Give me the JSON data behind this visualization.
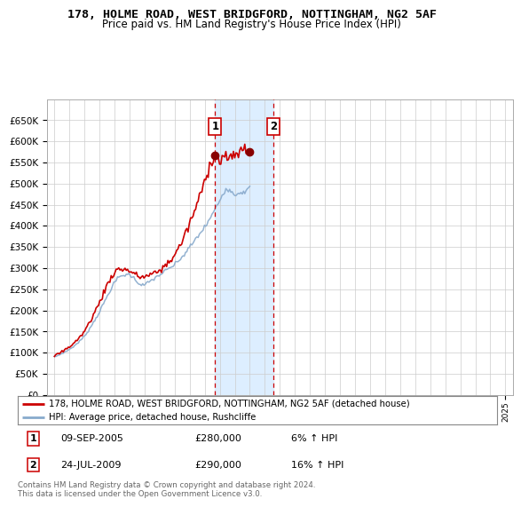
{
  "title": "178, HOLME ROAD, WEST BRIDGFORD, NOTTINGHAM, NG2 5AF",
  "subtitle": "Price paid vs. HM Land Registry's House Price Index (HPI)",
  "ylim": [
    0,
    700000
  ],
  "yticks": [
    0,
    50000,
    100000,
    150000,
    200000,
    250000,
    300000,
    350000,
    400000,
    450000,
    500000,
    550000,
    600000,
    650000
  ],
  "sale1_year": 2005.69,
  "sale1_price": 280000,
  "sale1_date": "09-SEP-2005",
  "sale1_hpi": "6% ↑ HPI",
  "sale2_year": 2009.56,
  "sale2_price": 290000,
  "sale2_date": "24-JUL-2009",
  "sale2_hpi": "16% ↑ HPI",
  "line_color_property": "#cc0000",
  "line_color_hpi": "#88aacc",
  "shaded_region_color": "#ddeeff",
  "legend_property": "178, HOLME ROAD, WEST BRIDGFORD, NOTTINGHAM, NG2 5AF (detached house)",
  "legend_hpi": "HPI: Average price, detached house, Rushcliffe",
  "footer": "Contains HM Land Registry data © Crown copyright and database right 2024.\nThis data is licensed under the Open Government Licence v3.0.",
  "background_color": "#ffffff",
  "grid_color": "#cccccc",
  "hpi_data": [
    90000,
    91000,
    92000,
    93500,
    95000,
    96500,
    98000,
    99500,
    101000,
    102500,
    104000,
    106000,
    108000,
    110000,
    112000,
    114000,
    116500,
    119000,
    121500,
    124000,
    127000,
    130000,
    133000,
    136000,
    140000,
    144000,
    148000,
    152000,
    157000,
    162000,
    167000,
    172000,
    177000,
    182000,
    187000,
    192000,
    198000,
    204000,
    210000,
    216000,
    222000,
    228000,
    234000,
    240000,
    246000,
    252000,
    257000,
    262000,
    267000,
    271000,
    275000,
    278000,
    280000,
    281000,
    282000,
    283000,
    284000,
    284500,
    285000,
    285000,
    284000,
    282000,
    279000,
    276000,
    273000,
    270000,
    267000,
    264000,
    262000,
    261000,
    260000,
    260000,
    261000,
    263000,
    265000,
    267000,
    269000,
    271000,
    273000,
    275000,
    277000,
    279000,
    281000,
    283000,
    285000,
    287000,
    289000,
    291000,
    293000,
    295000,
    297000,
    299000,
    301000,
    303000,
    305000,
    307000,
    310000,
    313000,
    316000,
    319000,
    322000,
    325000,
    328000,
    332000,
    336000,
    340000,
    344000,
    348000,
    352000,
    356000,
    360000,
    364000,
    368000,
    372000,
    376000,
    380000,
    384000,
    388000,
    392000,
    396000,
    400000,
    405000,
    410000,
    415000,
    420000,
    425000,
    430000,
    436000,
    442000,
    448000,
    454000,
    460000,
    466000,
    472000,
    478000,
    484000,
    488000,
    490000,
    488000,
    485000,
    482000,
    479000,
    477000,
    476000,
    476000,
    477000,
    478000,
    479000,
    480000,
    481000,
    482000,
    483000,
    484000,
    485000,
    486000,
    487000
  ],
  "prop_data": [
    93000,
    94000,
    95500,
    97000,
    98500,
    100000,
    102000,
    104000,
    106000,
    108000,
    110000,
    112000,
    114000,
    116500,
    119000,
    121500,
    124000,
    127000,
    130000,
    133000,
    136000,
    139500,
    143000,
    147000,
    152000,
    157000,
    162000,
    167000,
    172000,
    178000,
    184000,
    190000,
    196000,
    202000,
    208000,
    214000,
    220000,
    227000,
    234000,
    241000,
    248000,
    255000,
    261000,
    267000,
    273000,
    278000,
    283000,
    287000,
    291000,
    294000,
    296000,
    297000,
    297500,
    298000,
    298000,
    297500,
    297000,
    296000,
    295000,
    294000,
    293000,
    291000,
    289000,
    287000,
    285000,
    283000,
    281000,
    280000,
    279500,
    279000,
    279000,
    279500,
    280000,
    281000,
    282000,
    283000,
    284000,
    285000,
    286000,
    287000,
    288000,
    290000,
    292000,
    294000,
    296000,
    298000,
    300000,
    303000,
    306000,
    309000,
    312000,
    315000,
    318000,
    322000,
    326000,
    330000,
    335000,
    340000,
    345000,
    350000,
    356000,
    362000,
    368000,
    375000,
    382000,
    389000,
    396000,
    403000,
    410000,
    418000,
    426000,
    434000,
    442000,
    450000,
    458000,
    467000,
    476000,
    485000,
    494000,
    503000,
    513000,
    523000,
    533000,
    543000,
    553000,
    560000,
    565000,
    568000,
    565000,
    560000,
    557000,
    555000,
    557000,
    559000,
    561000,
    563000,
    565000,
    563000,
    560000,
    557000,
    555000,
    558000,
    562000,
    566000,
    570000,
    573000,
    575000,
    577000,
    578000,
    579000,
    580000,
    581000,
    582000,
    583000,
    584000,
    585000
  ]
}
